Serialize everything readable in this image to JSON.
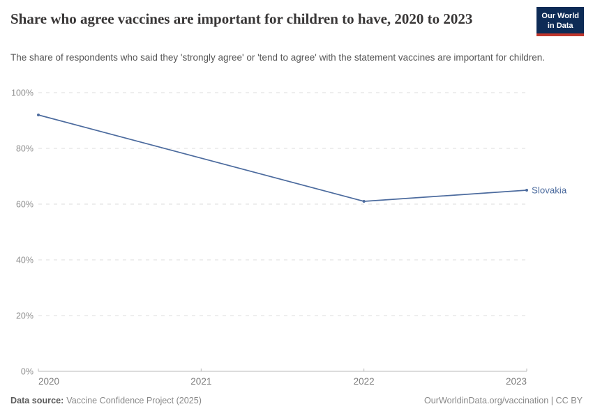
{
  "header": {
    "title": "Share who agree vaccines are important for children to have, 2020 to 2023",
    "subtitle": "The share of respondents who said they 'strongly agree' or 'tend to agree' with the statement vaccines are important for children.",
    "logo": {
      "line1": "Our World",
      "line2": "in Data"
    }
  },
  "chart_data": {
    "type": "line",
    "title": "Share who agree vaccines are important for children to have, 2020 to 2023",
    "xlabel": "",
    "ylabel": "",
    "xlim": [
      2020,
      2023
    ],
    "ylim": [
      0,
      100
    ],
    "grid": "horizontal-dashed",
    "legend_position": "end-of-line-label",
    "x_ticks": [
      {
        "value": 2020,
        "label": "2020"
      },
      {
        "value": 2021,
        "label": "2021"
      },
      {
        "value": 2022,
        "label": "2022"
      },
      {
        "value": 2023,
        "label": "2023"
      }
    ],
    "y_ticks": [
      {
        "value": 0,
        "label": "0%"
      },
      {
        "value": 20,
        "label": "20%"
      },
      {
        "value": 40,
        "label": "40%"
      },
      {
        "value": 60,
        "label": "60%"
      },
      {
        "value": 80,
        "label": "80%"
      },
      {
        "value": 100,
        "label": "100%"
      }
    ],
    "series": [
      {
        "name": "Slovakia",
        "color": "#4c6b9e",
        "points": [
          {
            "x": 2020,
            "y": 92
          },
          {
            "x": 2022,
            "y": 61
          },
          {
            "x": 2023,
            "y": 65
          }
        ]
      }
    ]
  },
  "footer": {
    "datasource_label": "Data source:",
    "datasource_value": "Vaccine Confidence Project (2025)",
    "attribution": "OurWorldinData.org/vaccination | CC BY"
  },
  "colors": {
    "accent_line": "#4c6b9e",
    "logo_bg": "#0d2b56",
    "logo_red": "#c0362c",
    "axis": "#b9b9b9",
    "grid": "#dcdcdc",
    "y_tick_text": "#8f8f8f",
    "x_tick_text": "#7d7d7d",
    "title_text": "#383636",
    "subtitle_text": "#555555"
  }
}
